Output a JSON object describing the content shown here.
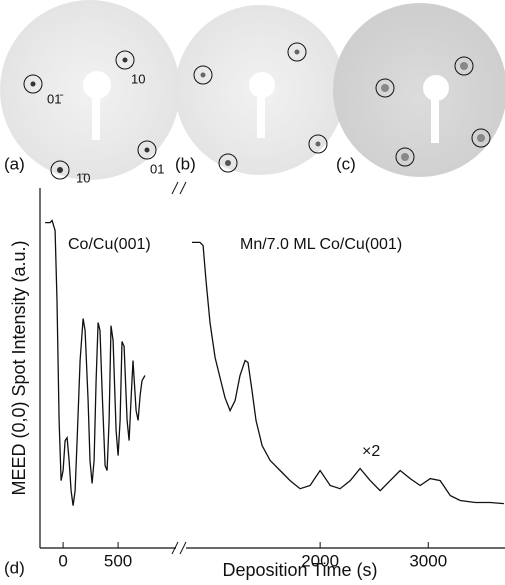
{
  "diffraction_panels": [
    {
      "label": "(a)",
      "spot_labels": [
        "01̄",
        "10",
        "1̄0",
        "01"
      ]
    },
    {
      "label": "(b)"
    },
    {
      "label": "(c)"
    }
  ],
  "panel_label": "(d)",
  "chart_data": [
    {
      "type": "line",
      "annotation": "Co/Cu(001)",
      "ylabel": "MEED (0,0) Spot Intensity (a.u.)",
      "x": [
        -164,
        -118,
        -100,
        -73,
        -55,
        -36,
        -18,
        0,
        18,
        36,
        55,
        73,
        91,
        109,
        127,
        155,
        182,
        200,
        227,
        245,
        264,
        282,
        300,
        318,
        336,
        355,
        382,
        400,
        418,
        436,
        455,
        482,
        500,
        518,
        536,
        555,
        582,
        600,
        618,
        636,
        664,
        682,
        700,
        718,
        745
      ],
      "series": [
        {
          "color": "#111111",
          "values": [
            100,
            100,
            100.7,
            97.2,
            72.9,
            31.3,
            10.4,
            13.9,
            24.3,
            25.3,
            17.4,
            6.9,
            1.7,
            6.9,
            24.3,
            52.1,
            66.7,
            62.5,
            38.2,
            17.4,
            9.4,
            17.4,
            45.1,
            65.3,
            62.5,
            41.7,
            15.6,
            13.9,
            31.3,
            64.2,
            59.0,
            27.8,
            19.1,
            31.3,
            58.7,
            57.0,
            31.3,
            24.3,
            38.2,
            52.1,
            34.7,
            31.3,
            39.9,
            45.1,
            46.9
          ]
        }
      ],
      "xlim": [
        -210,
        1045
      ],
      "xticks": [
        0,
        500
      ],
      "ylim": [
        -13,
        112
      ]
    },
    {
      "type": "line",
      "annotations": [
        "Mn/7.0 ML Co/Cu(001)",
        "×2"
      ],
      "xlabel": "Deposition Time (s)",
      "x": [
        815,
        889,
        917,
        944,
        981,
        1028,
        1074,
        1120,
        1167,
        1213,
        1259,
        1306,
        1333,
        1370,
        1407,
        1463,
        1537,
        1630,
        1722,
        1815,
        1907,
        2000,
        2093,
        2185,
        2278,
        2370,
        2463,
        2556,
        2648,
        2741,
        2833,
        2926,
        3019,
        3111,
        3204,
        3296,
        3435,
        3574,
        3700
      ],
      "series": [
        {
          "color": "#111111",
          "values": [
            93.1,
            93.1,
            92.0,
            79.9,
            65.3,
            53.1,
            46.2,
            39.2,
            34.7,
            38.2,
            46.9,
            52.1,
            51.4,
            41.7,
            31.3,
            22.6,
            17.4,
            13.9,
            10.4,
            7.6,
            8.7,
            13.9,
            8.7,
            7.6,
            10.4,
            14.6,
            10.4,
            6.9,
            10.4,
            13.9,
            11.1,
            8.7,
            11.1,
            10.4,
            5.2,
            3.5,
            2.8,
            2.8,
            2.4
          ]
        }
      ],
      "xlim": [
        750,
        3710
      ],
      "xticks": [
        2000,
        3000
      ],
      "ylim": [
        -13,
        112
      ]
    }
  ]
}
